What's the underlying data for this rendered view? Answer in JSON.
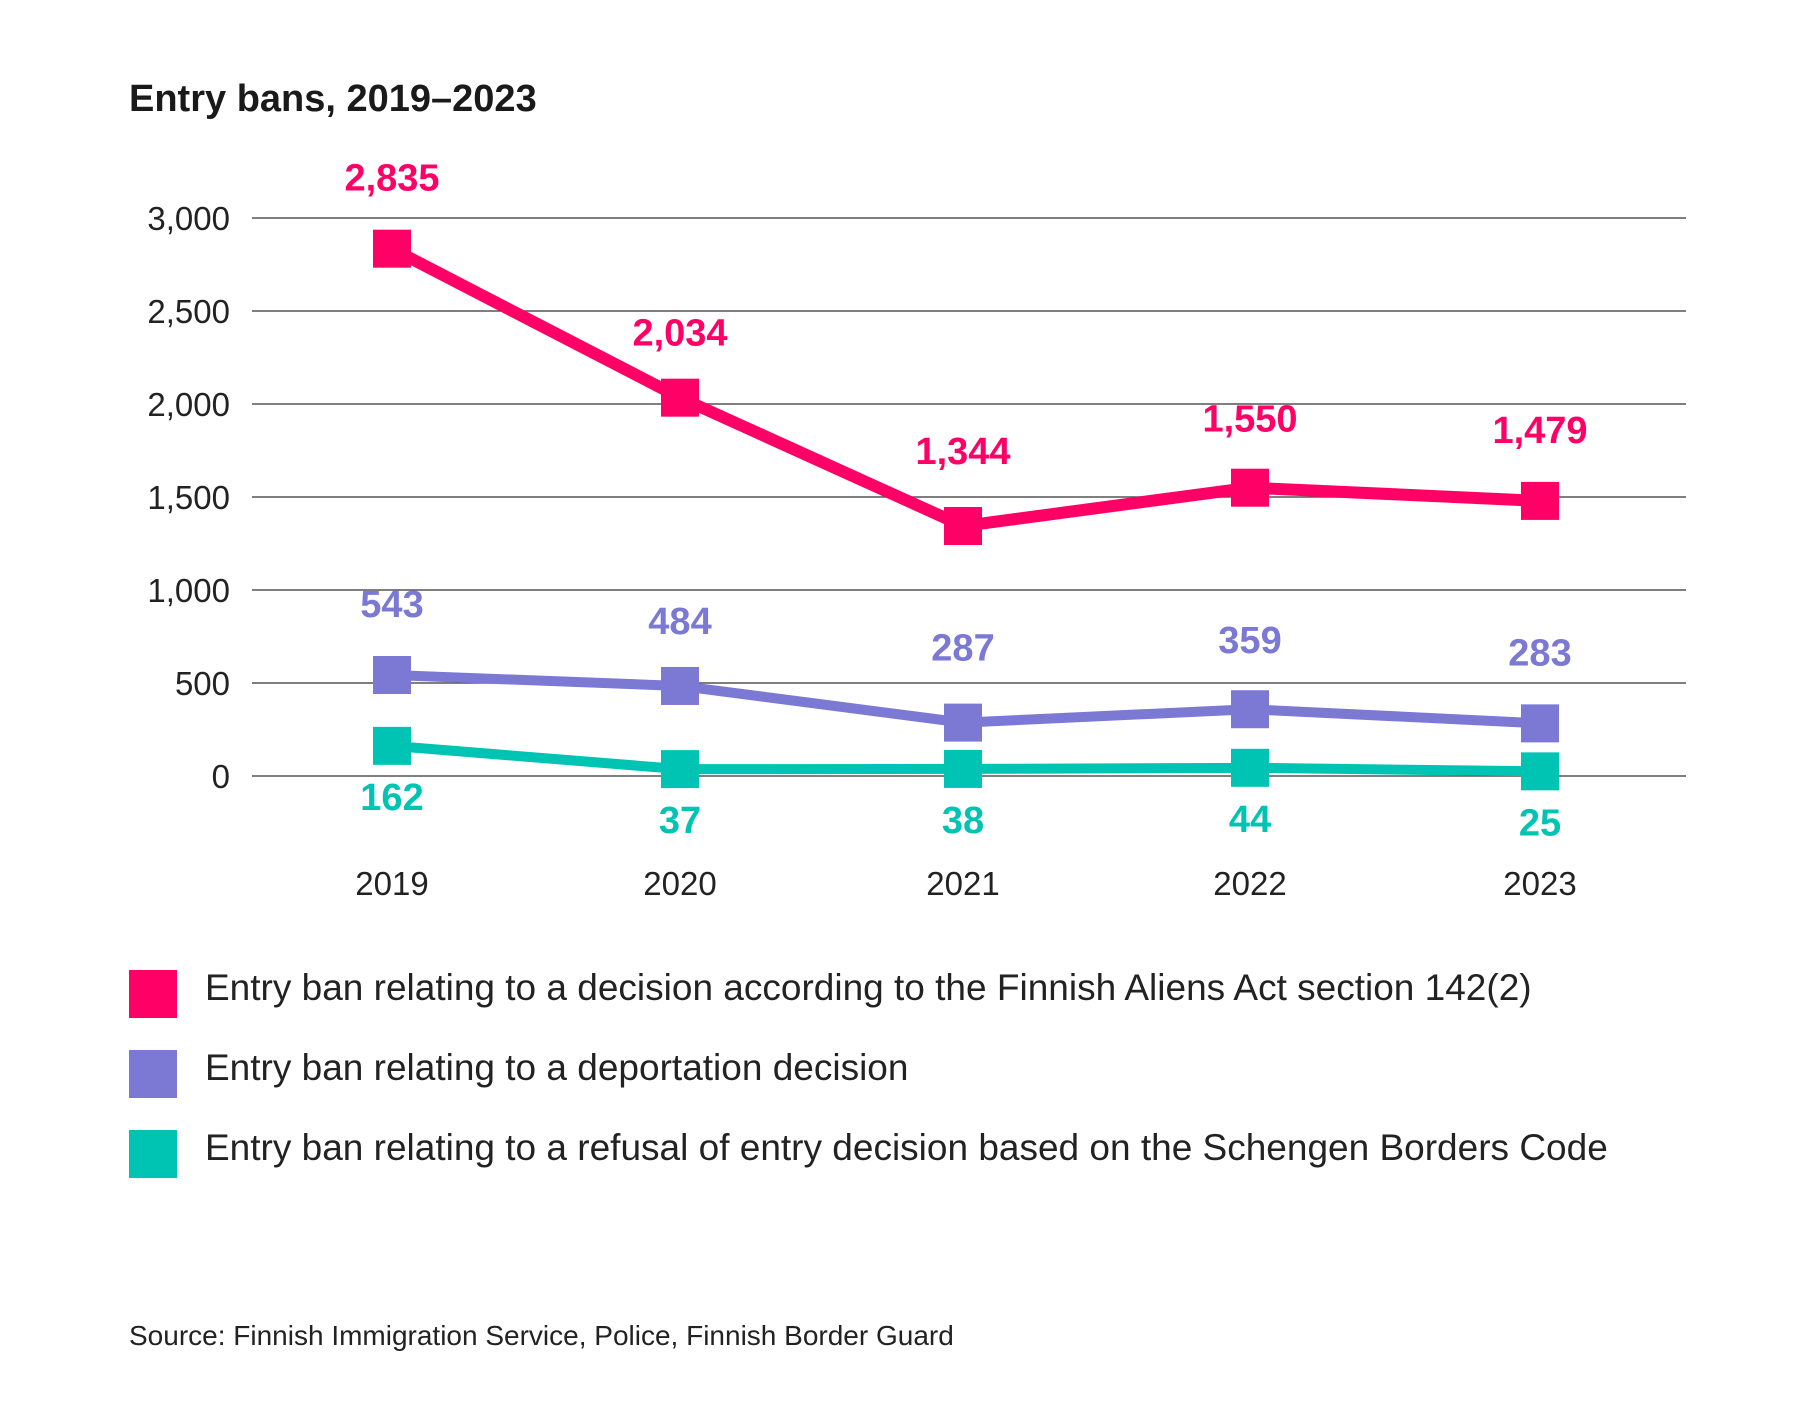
{
  "chart_data": {
    "type": "line",
    "title": "Entry bans, 2019–2023",
    "x": [
      "2019",
      "2020",
      "2021",
      "2022",
      "2023"
    ],
    "ylim": [
      0,
      3000
    ],
    "yticks": [
      0,
      500,
      1000,
      1500,
      2000,
      2500,
      3000
    ],
    "ytick_labels": [
      "0",
      "500",
      "1,000",
      "1,500",
      "2,000",
      "2,500",
      "3,000"
    ],
    "grid": true,
    "legend_position": "bottom",
    "series": [
      {
        "name": "Entry ban relating to a decision according to the Finnish Aliens Act section 142(2)",
        "color": "#ff0066",
        "values": [
          2835,
          2034,
          1344,
          1550,
          1479
        ],
        "labels": [
          "2,835",
          "2,034",
          "1,344",
          "1,550",
          "1,479"
        ],
        "label_position": "above"
      },
      {
        "name": "Entry ban relating to a deportation decision",
        "color": "#7b79d4",
        "values": [
          543,
          484,
          287,
          359,
          283
        ],
        "labels": [
          "543",
          "484",
          "287",
          "359",
          "283"
        ],
        "label_position": "above"
      },
      {
        "name": "Entry ban relating to a refusal of entry decision based on the Schengen Borders Code",
        "color": "#00c4b3",
        "values": [
          162,
          37,
          38,
          44,
          25
        ],
        "labels": [
          "162",
          "37",
          "38",
          "44",
          "25"
        ],
        "label_position": "below"
      }
    ],
    "source": "Source: Finnish Immigration Service, Police, Finnish Border Guard"
  }
}
